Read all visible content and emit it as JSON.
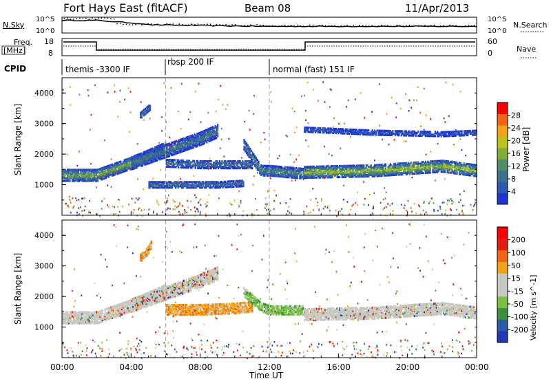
{
  "header": {
    "title": "Fort Hays East (fitACF)",
    "beam": "Beam 08",
    "date": "11/Apr/2013"
  },
  "noise_panel": {
    "left_label": "N.Sky",
    "left_ticks": [
      "10^5",
      "10^0"
    ],
    "right_ticks": [
      "10^5",
      "10^0"
    ],
    "right_label": "N.Search"
  },
  "freq_panel": {
    "left_label_1": "Freq.",
    "left_label_2": "[MHz]",
    "left_ticks": [
      "18",
      "8"
    ],
    "right_ticks": [
      "60",
      "0"
    ],
    "right_label": "Nave"
  },
  "cpid_panel": {
    "label": "CPID",
    "segments": [
      {
        "text": "themis -3300 IF",
        "start_h": 0,
        "end_h": 6
      },
      {
        "text": "rbsp 200 IF",
        "start_h": 6,
        "end_h": 12
      },
      {
        "text": "normal (fast) 151 IF",
        "start_h": 12,
        "end_h": 24
      }
    ]
  },
  "colors": {
    "power_scale": [
      "#1f34d6",
      "#2f57b8",
      "#3c6f8e",
      "#4f8d66",
      "#7fae38",
      "#bcc21c",
      "#f2a215",
      "#f26314",
      "#e51b12",
      "#ff0000"
    ],
    "velocity_scale": [
      "#2236b8",
      "#2a5aa8",
      "#3c8e3c",
      "#78c040",
      "#c8c8c0",
      "#c8c8c0",
      "#f2a215",
      "#f26314",
      "#e51b12",
      "#ff0000"
    ]
  },
  "chart_data": [
    {
      "type": "heatmap",
      "panel": "power",
      "x_unit": "hours UT",
      "xlim": [
        0,
        24
      ],
      "ylim": [
        0,
        4500
      ],
      "ylabel": "Slant Range [km]",
      "y_ticks": [
        "4000",
        "3000",
        "2000",
        "1000"
      ],
      "colorbar_label": "Power [dB]",
      "colorbar_ticks": [
        "28",
        "24",
        "20",
        "16",
        "12",
        "8",
        "4"
      ],
      "colorbar_range": [
        0,
        32
      ],
      "bands": [
        {
          "x": [
            0.0,
            2.0,
            4.0,
            6.0
          ],
          "y": [
            1350,
            1350,
            1750,
            2250
          ],
          "width_km": 380,
          "level": 14
        },
        {
          "x": [
            4.0,
            6.0,
            8.0,
            9.0
          ],
          "y": [
            1750,
            2150,
            2550,
            2800
          ],
          "width_km": 420,
          "level": 9
        },
        {
          "x": [
            5.0,
            7.0,
            9.0,
            10.5
          ],
          "y": [
            1050,
            1050,
            1050,
            1100
          ],
          "width_km": 220,
          "level": 8
        },
        {
          "x": [
            6.0,
            8.0,
            10.0,
            11.0
          ],
          "y": [
            1750,
            1700,
            1700,
            1700
          ],
          "width_km": 250,
          "level": 8
        },
        {
          "x": [
            10.5,
            11.5,
            12.0,
            14.0
          ],
          "y": [
            2350,
            1500,
            1500,
            1400
          ],
          "width_km": 330,
          "level": 11
        },
        {
          "x": [
            14.0,
            18.0,
            22.0,
            24.0
          ],
          "y": [
            1450,
            1500,
            1650,
            1500
          ],
          "width_km": 380,
          "level": 16
        },
        {
          "x": [
            14.0,
            18.0,
            22.0,
            24.0
          ],
          "y": [
            2850,
            2750,
            2700,
            2750
          ],
          "width_km": 160,
          "level": 5
        },
        {
          "x": [
            4.5,
            4.7,
            4.9,
            5.1
          ],
          "y": [
            3300,
            3400,
            3500,
            3600
          ],
          "width_km": 200,
          "level": 9
        }
      ]
    },
    {
      "type": "heatmap",
      "panel": "velocity",
      "x_unit": "hours UT",
      "xlim": [
        0,
        24
      ],
      "ylim": [
        0,
        4500
      ],
      "xlabel": "Time UT",
      "x_ticks": [
        "00:00",
        "04:00",
        "08:00",
        "12:00",
        "16:00",
        "20:00",
        "00:00"
      ],
      "ylabel": "Slant Range [km]",
      "y_ticks": [
        "4000",
        "3000",
        "2000",
        "1000"
      ],
      "colorbar_label": "Velocity [m s^-1]",
      "colorbar_ticks": [
        "200",
        "100",
        "50",
        "15",
        "-15",
        "-50",
        "-100",
        "-200"
      ],
      "bands": [
        {
          "x": [
            0.0,
            2.0,
            4.0,
            6.0
          ],
          "y": [
            1350,
            1350,
            1750,
            2250
          ],
          "width_km": 380,
          "kind": "ground"
        },
        {
          "x": [
            4.0,
            6.0,
            8.0,
            9.0
          ],
          "y": [
            1750,
            2150,
            2550,
            2800
          ],
          "width_km": 420,
          "kind": "mixed"
        },
        {
          "x": [
            6.0,
            8.0,
            10.0,
            11.0
          ],
          "y": [
            1600,
            1600,
            1650,
            1700
          ],
          "width_km": 320,
          "kind": "orange"
        },
        {
          "x": [
            10.5,
            11.5,
            12.0,
            14.0
          ],
          "y": [
            2200,
            1700,
            1600,
            1600
          ],
          "width_km": 300,
          "kind": "green"
        },
        {
          "x": [
            14.0,
            18.0,
            22.0,
            24.0
          ],
          "y": [
            1450,
            1500,
            1650,
            1500
          ],
          "width_km": 380,
          "kind": "ground"
        },
        {
          "x": [
            4.5,
            4.8,
            5.0,
            5.2
          ],
          "y": [
            3300,
            3450,
            3600,
            3800
          ],
          "width_km": 250,
          "kind": "orange"
        }
      ]
    }
  ]
}
